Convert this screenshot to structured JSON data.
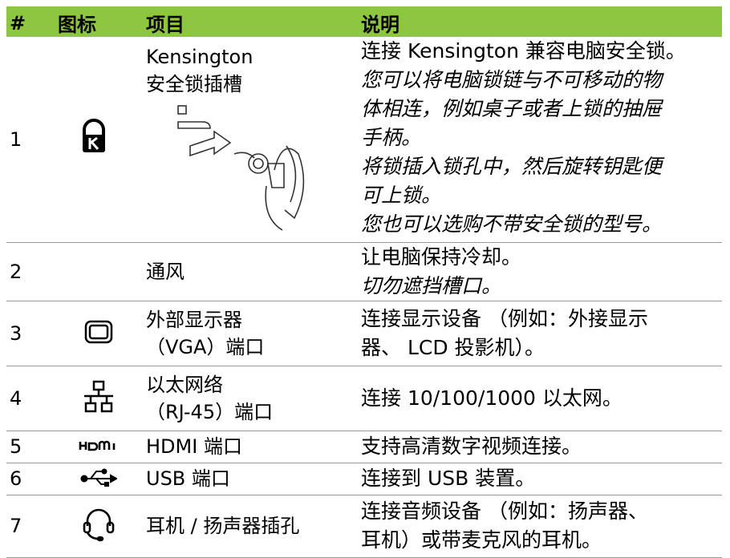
{
  "table": {
    "header": [
      "#",
      "图标",
      "项目",
      "说明"
    ],
    "rows": [
      {
        "number": "1",
        "item": [
          "Kensington",
          "安全锁插槽"
        ],
        "description": [
          "连接 Kensington 兼容电脑安全锁。"
        ],
        "notes": [
          "您可以将电脑锁链与不可移动的物",
          "体相连，例如桌子或者上锁的抽屉",
          "手柄。",
          "将锁插入锁孔中，然后旋转钥匙便",
          "可上锁。",
          "您也可以选购不带安全锁的型号。"
        ]
      },
      {
        "number": "2",
        "item": [
          "通风"
        ],
        "description": [
          "让电脑保持冷却。"
        ],
        "notes": [
          "切勿遮挡槽口。"
        ]
      },
      {
        "number": "3",
        "item": [
          "外部显示器",
          "（VGA）端口"
        ],
        "description": [
          "连接显示设备 （例如：外接显示",
          "器、 LCD 投影机）。"
        ],
        "notes": []
      },
      {
        "number": "4",
        "item": [
          "以太网络",
          "（RJ-45）端口"
        ],
        "description": [
          "连接 10/100/1000 以太网。"
        ],
        "notes": []
      },
      {
        "number": "5",
        "item": [
          "HDMI 端口"
        ],
        "description": [
          "支持高清数字视频连接。"
        ],
        "notes": []
      },
      {
        "number": "6",
        "item": [
          "USB 端口"
        ],
        "description": [
          "连接到 USB 装置。"
        ],
        "notes": []
      },
      {
        "number": "7",
        "item": [
          "耳机 / 扬声器插孔"
        ],
        "description": [
          "连接音频设备 （例如：扬声器、",
          "耳机）或带麦克风的耳机。"
        ],
        "notes": []
      }
    ]
  }
}
